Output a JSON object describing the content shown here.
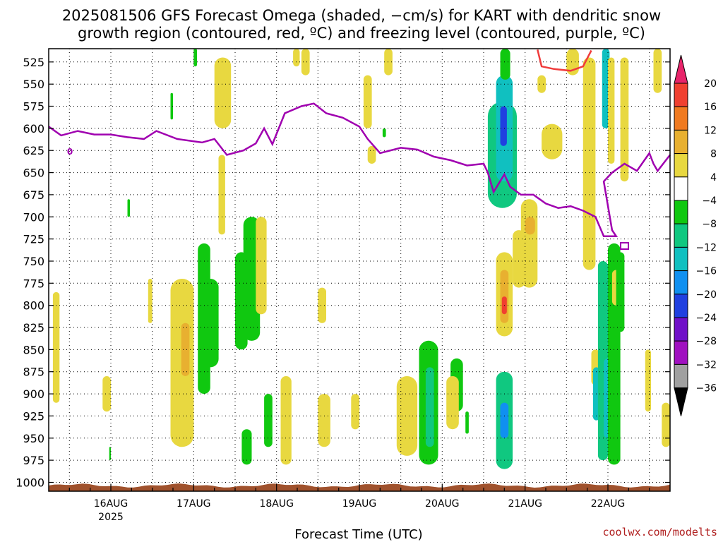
{
  "chart_data": {
    "type": "heatmap",
    "title_lines": [
      "2025081506 GFS Forecast Omega (shaded, −cm/s) for KART with dendritic snow",
      "growth region (contoured, red, ºC) and freezing level (contoured, purple, ºC)"
    ],
    "xlabel": "Forecast Time (UTC)",
    "x_ticks": [
      "16AUG",
      "17AUG",
      "18AUG",
      "19AUG",
      "20AUG",
      "21AUG",
      "22AUG"
    ],
    "x_year": "2025",
    "x_range_days": [
      15.25,
      22.75
    ],
    "y_ticks": [
      525,
      550,
      575,
      600,
      625,
      650,
      675,
      700,
      725,
      750,
      775,
      800,
      825,
      850,
      875,
      900,
      925,
      950,
      975,
      1000
    ],
    "ylim_hpa": [
      1010,
      510
    ],
    "ylabel": "",
    "grid": true,
    "colorbar": {
      "labels": [
        "20",
        "16",
        "12",
        "8",
        "4",
        "−4",
        "−8",
        "−12",
        "−16",
        "−20",
        "−24",
        "−28",
        "−32",
        "−36"
      ],
      "colors": [
        "#e8246a",
        "#f04030",
        "#f07a20",
        "#e8b030",
        "#e8d840",
        "#ffffff",
        "#10c810",
        "#10c880",
        "#10c0c0",
        "#1090f0",
        "#2040e0",
        "#7010c8",
        "#a010c0",
        "#a0a0a0",
        "#000000"
      ]
    },
    "freezing_level_label": "0",
    "freezing_level": [
      [
        15.25,
        598
      ],
      [
        15.4,
        608
      ],
      [
        15.6,
        603
      ],
      [
        15.8,
        607
      ],
      [
        16.0,
        607
      ],
      [
        16.2,
        610
      ],
      [
        16.4,
        612
      ],
      [
        16.55,
        603
      ],
      [
        16.8,
        612
      ],
      [
        17.1,
        616
      ],
      [
        17.25,
        612
      ],
      [
        17.4,
        630
      ],
      [
        17.6,
        625
      ],
      [
        17.75,
        617
      ],
      [
        17.85,
        600
      ],
      [
        17.95,
        618
      ],
      [
        18.1,
        583
      ],
      [
        18.3,
        575
      ],
      [
        18.45,
        572
      ],
      [
        18.6,
        583
      ],
      [
        18.8,
        588
      ],
      [
        19.0,
        598
      ],
      [
        19.1,
        612
      ],
      [
        19.25,
        628
      ],
      [
        19.5,
        622
      ],
      [
        19.7,
        624
      ],
      [
        19.9,
        632
      ],
      [
        20.1,
        636
      ],
      [
        20.3,
        642
      ],
      [
        20.5,
        640
      ],
      [
        20.55,
        650
      ],
      [
        20.62,
        672
      ],
      [
        20.75,
        652
      ],
      [
        20.82,
        666
      ],
      [
        20.95,
        675
      ],
      [
        21.1,
        675
      ],
      [
        21.25,
        685
      ],
      [
        21.4,
        690
      ],
      [
        21.55,
        688
      ],
      [
        21.7,
        693
      ],
      [
        21.85,
        700
      ],
      [
        21.95,
        722
      ],
      [
        22.1,
        722
      ],
      [
        22.05,
        715
      ],
      [
        21.95,
        660
      ],
      [
        22.05,
        650
      ],
      [
        22.2,
        640
      ],
      [
        22.35,
        648
      ],
      [
        22.5,
        628
      ],
      [
        22.55,
        640
      ],
      [
        22.6,
        648
      ],
      [
        22.75,
        630
      ]
    ],
    "dgz_outline": [
      [
        21.15,
        511
      ],
      [
        21.2,
        530
      ],
      [
        21.35,
        533
      ],
      [
        21.55,
        535
      ],
      [
        21.7,
        530
      ],
      [
        21.8,
        512
      ]
    ],
    "omega_patches": [
      {
        "x0": 15.3,
        "x1": 15.38,
        "p0": 785,
        "p1": 910,
        "value": 5
      },
      {
        "x0": 15.9,
        "x1": 16.0,
        "p0": 880,
        "p1": 920,
        "value": 5
      },
      {
        "x0": 16.45,
        "x1": 16.5,
        "p0": 770,
        "p1": 820,
        "value": 5
      },
      {
        "x0": 16.72,
        "x1": 17.0,
        "p0": 770,
        "p1": 960,
        "value": 6
      },
      {
        "x0": 16.85,
        "x1": 16.95,
        "p0": 820,
        "p1": 880,
        "value": 9
      },
      {
        "x0": 17.05,
        "x1": 17.2,
        "p0": 730,
        "p1": 900,
        "value": -6
      },
      {
        "x0": 17.1,
        "x1": 17.3,
        "p0": 770,
        "p1": 870,
        "value": -6
      },
      {
        "x0": 17.25,
        "x1": 17.45,
        "p0": 520,
        "p1": 600,
        "value": 5
      },
      {
        "x0": 17.3,
        "x1": 17.38,
        "p0": 630,
        "p1": 720,
        "value": 5
      },
      {
        "x0": 17.5,
        "x1": 17.65,
        "p0": 740,
        "p1": 850,
        "value": -6
      },
      {
        "x0": 17.6,
        "x1": 17.8,
        "p0": 700,
        "p1": 840,
        "value": -6
      },
      {
        "x0": 17.75,
        "x1": 17.88,
        "p0": 700,
        "p1": 810,
        "value": 5
      },
      {
        "x0": 17.58,
        "x1": 17.7,
        "p0": 940,
        "p1": 980,
        "value": -6
      },
      {
        "x0": 17.85,
        "x1": 17.95,
        "p0": 900,
        "p1": 960,
        "value": -6
      },
      {
        "x0": 18.05,
        "x1": 18.18,
        "p0": 880,
        "p1": 980,
        "value": 5
      },
      {
        "x0": 18.2,
        "x1": 18.28,
        "p0": 510,
        "p1": 530,
        "value": 5
      },
      {
        "x0": 18.3,
        "x1": 18.4,
        "p0": 510,
        "p1": 540,
        "value": 5
      },
      {
        "x0": 18.5,
        "x1": 18.6,
        "p0": 780,
        "p1": 820,
        "value": 5
      },
      {
        "x0": 18.5,
        "x1": 18.65,
        "p0": 900,
        "p1": 960,
        "value": 5
      },
      {
        "x0": 18.9,
        "x1": 19.0,
        "p0": 900,
        "p1": 940,
        "value": 5
      },
      {
        "x0": 19.05,
        "x1": 19.15,
        "p0": 540,
        "p1": 600,
        "value": 5
      },
      {
        "x0": 19.1,
        "x1": 19.2,
        "p0": 620,
        "p1": 640,
        "value": 5
      },
      {
        "x0": 19.3,
        "x1": 19.4,
        "p0": 510,
        "p1": 540,
        "value": 5
      },
      {
        "x0": 19.45,
        "x1": 19.7,
        "p0": 880,
        "p1": 970,
        "value": 5
      },
      {
        "x0": 19.72,
        "x1": 19.95,
        "p0": 840,
        "p1": 980,
        "value": -6
      },
      {
        "x0": 19.8,
        "x1": 19.9,
        "p0": 870,
        "p1": 960,
        "value": -9
      },
      {
        "x0": 20.1,
        "x1": 20.25,
        "p0": 860,
        "p1": 920,
        "value": -6
      },
      {
        "x0": 20.05,
        "x1": 20.2,
        "p0": 880,
        "p1": 940,
        "value": 5
      },
      {
        "x0": 20.55,
        "x1": 20.9,
        "p0": 570,
        "p1": 690,
        "value": -10
      },
      {
        "x0": 20.65,
        "x1": 20.85,
        "p0": 540,
        "p1": 660,
        "value": -14
      },
      {
        "x0": 20.7,
        "x1": 20.78,
        "p0": 575,
        "p1": 620,
        "value": -22
      },
      {
        "x0": 20.7,
        "x1": 20.82,
        "p0": 510,
        "p1": 545,
        "value": -6
      },
      {
        "x0": 20.65,
        "x1": 20.85,
        "p0": 740,
        "p1": 835,
        "value": 6
      },
      {
        "x0": 20.7,
        "x1": 20.8,
        "p0": 760,
        "p1": 820,
        "value": 10
      },
      {
        "x0": 20.72,
        "x1": 20.78,
        "p0": 790,
        "p1": 810,
        "value": 17
      },
      {
        "x0": 20.65,
        "x1": 20.85,
        "p0": 875,
        "p1": 985,
        "value": -10
      },
      {
        "x0": 20.7,
        "x1": 20.8,
        "p0": 910,
        "p1": 950,
        "value": -18
      },
      {
        "x0": 20.85,
        "x1": 21.0,
        "p0": 715,
        "p1": 780,
        "value": 5
      },
      {
        "x0": 20.95,
        "x1": 21.15,
        "p0": 680,
        "p1": 780,
        "value": 5
      },
      {
        "x0": 21.0,
        "x1": 21.12,
        "p0": 700,
        "p1": 720,
        "value": 10
      },
      {
        "x0": 21.15,
        "x1": 21.25,
        "p0": 540,
        "p1": 560,
        "value": 5
      },
      {
        "x0": 21.2,
        "x1": 21.45,
        "p0": 595,
        "p1": 635,
        "value": 5
      },
      {
        "x0": 21.5,
        "x1": 21.65,
        "p0": 510,
        "p1": 540,
        "value": 5
      },
      {
        "x0": 21.7,
        "x1": 21.85,
        "p0": 520,
        "p1": 760,
        "value": 5
      },
      {
        "x0": 21.8,
        "x1": 21.9,
        "p0": 850,
        "p1": 890,
        "value": 5
      },
      {
        "x0": 21.82,
        "x1": 21.9,
        "p0": 870,
        "p1": 930,
        "value": -14
      },
      {
        "x0": 21.88,
        "x1": 22.0,
        "p0": 750,
        "p1": 975,
        "value": -10
      },
      {
        "x0": 21.95,
        "x1": 22.05,
        "p0": 860,
        "p1": 950,
        "value": -14
      },
      {
        "x0": 21.93,
        "x1": 22.02,
        "p0": 510,
        "p1": 600,
        "value": -14
      },
      {
        "x0": 22.0,
        "x1": 22.08,
        "p0": 520,
        "p1": 640,
        "value": 5
      },
      {
        "x0": 22.0,
        "x1": 22.15,
        "p0": 730,
        "p1": 980,
        "value": -6
      },
      {
        "x0": 22.05,
        "x1": 22.15,
        "p0": 760,
        "p1": 800,
        "value": 5
      },
      {
        "x0": 22.1,
        "x1": 22.2,
        "p0": 740,
        "p1": 830,
        "value": -6
      },
      {
        "x0": 22.15,
        "x1": 22.25,
        "p0": 520,
        "p1": 660,
        "value": 5
      },
      {
        "x0": 22.45,
        "x1": 22.52,
        "p0": 850,
        "p1": 920,
        "value": 5
      },
      {
        "x0": 22.55,
        "x1": 22.65,
        "p0": 510,
        "p1": 560,
        "value": 5
      },
      {
        "x0": 22.65,
        "x1": 22.75,
        "p0": 910,
        "p1": 960,
        "value": 5
      },
      {
        "x0": 15.98,
        "x1": 16.0,
        "p0": 960,
        "p1": 975,
        "value": -6
      },
      {
        "x0": 16.2,
        "x1": 16.23,
        "p0": 680,
        "p1": 700,
        "value": -6
      },
      {
        "x0": 17.0,
        "x1": 17.04,
        "p0": 510,
        "p1": 530,
        "value": -6
      },
      {
        "x0": 16.72,
        "x1": 16.75,
        "p0": 560,
        "p1": 590,
        "value": -6
      },
      {
        "x0": 19.28,
        "x1": 19.32,
        "p0": 600,
        "p1": 610,
        "value": -6
      },
      {
        "x0": 20.28,
        "x1": 20.32,
        "p0": 920,
        "p1": 945,
        "value": -6
      }
    ]
  },
  "credit": "coolwx.com/modelts"
}
